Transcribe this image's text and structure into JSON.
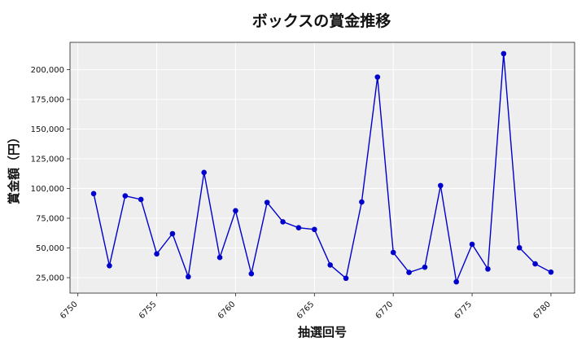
{
  "chart_data": {
    "type": "line",
    "title": "ボックスの賞金推移",
    "xlabel": "抽選回号",
    "ylabel": "賞金額（円）",
    "x_ticks": [
      6750,
      6755,
      6760,
      6765,
      6770,
      6775,
      6780
    ],
    "y_ticks": [
      25000,
      50000,
      75000,
      100000,
      125000,
      150000,
      175000,
      200000
    ],
    "y_tick_labels": [
      "25,000",
      "50,000",
      "75,000",
      "100,000",
      "125,000",
      "150,000",
      "175,000",
      "200,000"
    ],
    "xlim": [
      6749.5,
      6781.5
    ],
    "ylim": [
      12000,
      223000
    ],
    "grid": true,
    "background_color": "#eeeeee",
    "series": [
      {
        "color": "#0000cc",
        "points": [
          {
            "x": 6751,
            "y": 95700
          },
          {
            "x": 6752,
            "y": 35100
          },
          {
            "x": 6753,
            "y": 93800
          },
          {
            "x": 6754,
            "y": 90800
          },
          {
            "x": 6755,
            "y": 45000
          },
          {
            "x": 6756,
            "y": 62000
          },
          {
            "x": 6757,
            "y": 25800
          },
          {
            "x": 6758,
            "y": 113500
          },
          {
            "x": 6759,
            "y": 42000
          },
          {
            "x": 6760,
            "y": 81300
          },
          {
            "x": 6761,
            "y": 28300
          },
          {
            "x": 6762,
            "y": 88300
          },
          {
            "x": 6763,
            "y": 72000
          },
          {
            "x": 6764,
            "y": 67000
          },
          {
            "x": 6765,
            "y": 65600
          },
          {
            "x": 6766,
            "y": 35700
          },
          {
            "x": 6767,
            "y": 24500
          },
          {
            "x": 6768,
            "y": 88700
          },
          {
            "x": 6769,
            "y": 193800
          },
          {
            "x": 6770,
            "y": 46200
          },
          {
            "x": 6771,
            "y": 29400
          },
          {
            "x": 6772,
            "y": 33800
          },
          {
            "x": 6773,
            "y": 102500
          },
          {
            "x": 6774,
            "y": 21500
          },
          {
            "x": 6775,
            "y": 53100
          },
          {
            "x": 6776,
            "y": 32300
          },
          {
            "x": 6777,
            "y": 213500
          },
          {
            "x": 6778,
            "y": 50200
          },
          {
            "x": 6779,
            "y": 36600
          },
          {
            "x": 6780,
            "y": 29700
          }
        ]
      }
    ]
  }
}
